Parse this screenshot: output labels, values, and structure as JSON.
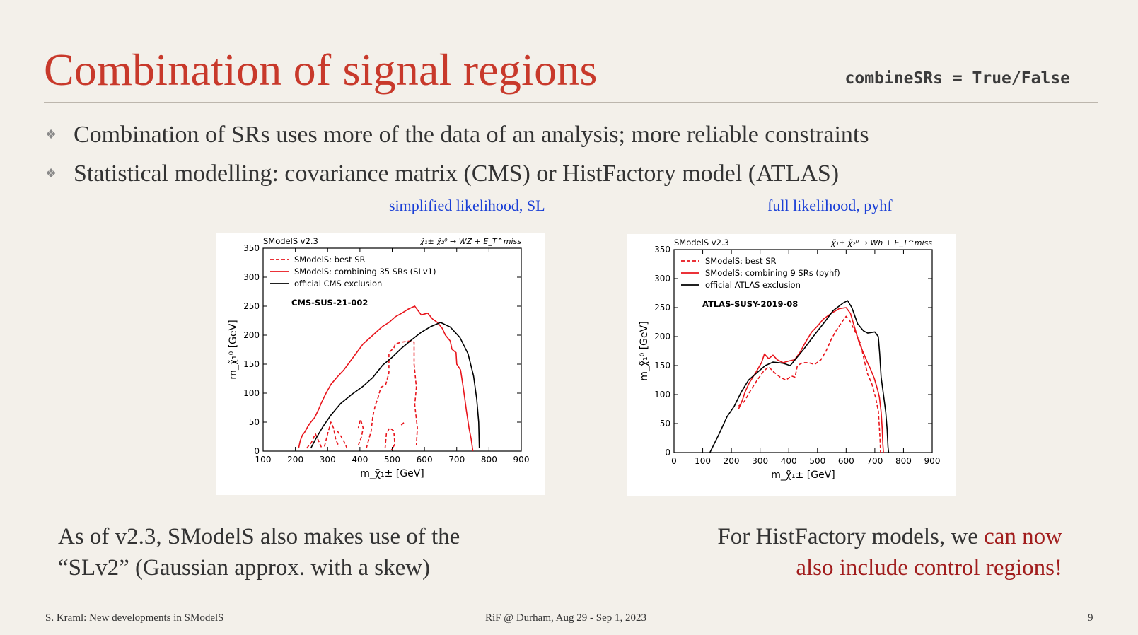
{
  "slide": {
    "title": "Combination of signal regions",
    "code_snippet": "combineSRs = True/False",
    "bullets": [
      "Combination of SRs uses more of the data of an analysis; more reliable constraints",
      "Statistical modelling: covariance matrix (CMS) or HistFactory model (ATLAS)"
    ],
    "bullet_icon": "diamond-bullet-icon",
    "left_label": "simplified likelihood, SL",
    "right_label": "full likelihood, pyhf",
    "caption_left_line1": "As of v2.3, SModelS also makes use of the",
    "caption_left_line2": "“SLv2” (Gaussian approx. with a skew)",
    "caption_right_normal": "For HistFactory models, we ",
    "caption_right_highlight1": "can now",
    "caption_right_highlight2": "also include control regions!",
    "footer_left": "S. Kraml: New developments in SModelS",
    "footer_center": "RiF @ Durham, Aug 29 - Sep 1, 2023",
    "page_number": "9",
    "colors": {
      "title": "#c8392b",
      "blue_label": "#1a3fd6",
      "highlight": "#a11d1d",
      "curve_red": "#e8141b",
      "curve_black": "#000000"
    }
  },
  "chart_data": [
    {
      "type": "line",
      "version_label": "SModelS v2.3",
      "process_label": "χ̃₁± χ̃₂⁰ → WZ + E_T^miss",
      "analysis_label": "CMS-SUS-21-002",
      "xlabel": "m_χ̃₁± [GeV]",
      "ylabel": "m_χ̃₁⁰ [GeV]",
      "xlim": [
        100,
        900
      ],
      "ylim": [
        0,
        350
      ],
      "xticks": [
        "100",
        "200",
        "300",
        "400",
        "500",
        "600",
        "700",
        "800",
        "900"
      ],
      "yticks": [
        "0",
        "50",
        "100",
        "150",
        "200",
        "250",
        "300",
        "350"
      ],
      "legend": "top-left",
      "series": [
        {
          "name": "SModelS: best SR",
          "style": "dashed",
          "color": "#e8141b",
          "segments": [
            [
              [
                235,
                5
              ],
              [
                250,
                15
              ],
              [
                262,
                30
              ],
              [
                270,
                20
              ],
              [
                282,
                5
              ]
            ],
            [
              [
                290,
                8
              ],
              [
                300,
                30
              ],
              [
                310,
                50
              ],
              [
                318,
                40
              ],
              [
                325,
                20
              ],
              [
                335,
                8
              ]
            ],
            [
              [
                330,
                35
              ],
              [
                342,
                25
              ],
              [
                352,
                15
              ],
              [
                360,
                5
              ]
            ],
            [
              [
                395,
                10
              ],
              [
                405,
                25
              ],
              [
                410,
                40
              ],
              [
                402,
                55
              ],
              [
                395,
                40
              ]
            ],
            [
              [
                420,
                5
              ],
              [
                435,
                35
              ],
              [
                440,
                60
              ],
              [
                448,
                80
              ],
              [
                455,
                90
              ],
              [
                465,
                110
              ],
              [
                480,
                115
              ],
              [
                490,
                135
              ],
              [
                490,
                170
              ],
              [
                505,
                178
              ],
              [
                510,
                185
              ],
              [
                530,
                188
              ],
              [
                555,
                190
              ],
              [
                568,
                188
              ],
              [
                568,
                150
              ],
              [
                575,
                110
              ],
              [
                570,
                80
              ],
              [
                578,
                40
              ],
              [
                575,
                10
              ]
            ],
            [
              [
                478,
                5
              ],
              [
                482,
                30
              ],
              [
                492,
                40
              ],
              [
                505,
                35
              ],
              [
                508,
                12
              ],
              [
                498,
                2
              ]
            ],
            [
              [
                528,
                45
              ],
              [
                538,
                50
              ]
            ]
          ]
        },
        {
          "name": "SModelS: combining 35 SRs (SLv1)",
          "style": "solid",
          "color": "#e8141b",
          "segments": [
            [
              [
                210,
                5
              ],
              [
                215,
                18
              ],
              [
                222,
                28
              ],
              [
                228,
                32
              ],
              [
                238,
                42
              ],
              [
                245,
                48
              ],
              [
                260,
                58
              ],
              [
                272,
                72
              ],
              [
                282,
                85
              ],
              [
                295,
                100
              ],
              [
                310,
                115
              ],
              [
                330,
                128
              ],
              [
                350,
                140
              ],
              [
                370,
                155
              ],
              [
                390,
                170
              ],
              [
                410,
                185
              ],
              [
                430,
                195
              ],
              [
                450,
                205
              ],
              [
                470,
                215
              ],
              [
                490,
                222
              ],
              [
                510,
                232
              ],
              [
                530,
                238
              ],
              [
                550,
                245
              ],
              [
                570,
                250
              ],
              [
                590,
                235
              ],
              [
                610,
                238
              ],
              [
                625,
                228
              ],
              [
                640,
                222
              ],
              [
                655,
                212
              ],
              [
                665,
                200
              ],
              [
                680,
                190
              ],
              [
                685,
                176
              ],
              [
                698,
                170
              ],
              [
                700,
                150
              ],
              [
                712,
                140
              ],
              [
                720,
                110
              ],
              [
                725,
                90
              ],
              [
                730,
                70
              ],
              [
                738,
                40
              ],
              [
                745,
                20
              ],
              [
                750,
                0
              ]
            ]
          ]
        },
        {
          "name": "official CMS exclusion",
          "style": "solid",
          "color": "#000000",
          "segments": [
            [
              [
                248,
                5
              ],
              [
                262,
                20
              ],
              [
                285,
                42
              ],
              [
                310,
                62
              ],
              [
                340,
                82
              ],
              [
                375,
                98
              ],
              [
                410,
                112
              ],
              [
                440,
                127
              ],
              [
                470,
                148
              ],
              [
                500,
                162
              ],
              [
                530,
                178
              ],
              [
                560,
                192
              ],
              [
                590,
                205
              ],
              [
                620,
                215
              ],
              [
                650,
                222
              ],
              [
                680,
                214
              ],
              [
                710,
                196
              ],
              [
                735,
                168
              ],
              [
                752,
                130
              ],
              [
                762,
                90
              ],
              [
                768,
                50
              ],
              [
                770,
                5
              ]
            ]
          ]
        }
      ]
    },
    {
      "type": "line",
      "version_label": "SModelS v2.3",
      "process_label": "χ̃₁± χ̃₂⁰ → Wh + E_T^miss",
      "analysis_label": "ATLAS-SUSY-2019-08",
      "xlabel": "m_χ̃₁± [GeV]",
      "ylabel": "m_χ̃₁⁰ [GeV]",
      "xlim": [
        0,
        900
      ],
      "ylim": [
        0,
        350
      ],
      "xticks": [
        "0",
        "100",
        "200",
        "300",
        "400",
        "500",
        "600",
        "700",
        "800",
        "900"
      ],
      "yticks": [
        "0",
        "50",
        "100",
        "150",
        "200",
        "250",
        "300",
        "350"
      ],
      "legend": "top-left",
      "series": [
        {
          "name": "SModelS: best SR",
          "style": "dashed",
          "color": "#e8141b",
          "segments": [
            [
              [
                225,
                80
              ],
              [
                245,
                88
              ],
              [
                268,
                108
              ],
              [
                290,
                125
              ],
              [
                312,
                140
              ],
              [
                330,
                148
              ],
              [
                345,
                140
              ],
              [
                370,
                130
              ],
              [
                390,
                125
              ],
              [
                410,
                132
              ],
              [
                422,
                130
              ],
              [
                430,
                150
              ],
              [
                448,
                155
              ],
              [
                470,
                155
              ],
              [
                490,
                152
              ],
              [
                512,
                160
              ],
              [
                530,
                175
              ],
              [
                548,
                195
              ],
              [
                565,
                210
              ],
              [
                585,
                225
              ],
              [
                600,
                235
              ],
              [
                612,
                228
              ],
              [
                630,
                210
              ],
              [
                650,
                188
              ],
              [
                665,
                155
              ],
              [
                675,
                135
              ],
              [
                690,
                118
              ],
              [
                702,
                96
              ],
              [
                712,
                72
              ],
              [
                715,
                50
              ],
              [
                718,
                25
              ],
              [
                720,
                0
              ]
            ]
          ]
        },
        {
          "name": "SModelS: combining 9 SRs (pyhf)",
          "style": "solid",
          "color": "#e8141b",
          "segments": [
            [
              [
                225,
                75
              ],
              [
                238,
                90
              ],
              [
                248,
                105
              ],
              [
                262,
                120
              ],
              [
                285,
                138
              ],
              [
                305,
                155
              ],
              [
                315,
                170
              ],
              [
                330,
                162
              ],
              [
                345,
                168
              ],
              [
                360,
                160
              ],
              [
                380,
                155
              ],
              [
                402,
                158
              ],
              [
                420,
                160
              ],
              [
                438,
                172
              ],
              [
                458,
                190
              ],
              [
                480,
                208
              ],
              [
                500,
                218
              ],
              [
                520,
                230
              ],
              [
                548,
                240
              ],
              [
                575,
                248
              ],
              [
                600,
                250
              ],
              [
                615,
                240
              ],
              [
                630,
                215
              ],
              [
                645,
                190
              ],
              [
                660,
                172
              ],
              [
                672,
                158
              ],
              [
                684,
                145
              ],
              [
                698,
                128
              ],
              [
                710,
                108
              ],
              [
                716,
                95
              ],
              [
                722,
                70
              ],
              [
                726,
                40
              ],
              [
                728,
                15
              ],
              [
                730,
                0
              ]
            ]
          ]
        },
        {
          "name": "official ATLAS exclusion",
          "style": "solid",
          "color": "#000000",
          "segments": [
            [
              [
                125,
                0
              ],
              [
                155,
                30
              ],
              [
                185,
                62
              ],
              [
                210,
                80
              ],
              [
                235,
                105
              ],
              [
                260,
                125
              ],
              [
                290,
                138
              ],
              [
                318,
                150
              ],
              [
                345,
                156
              ],
              [
                380,
                154
              ],
              [
                405,
                150
              ],
              [
                425,
                162
              ],
              [
                455,
                180
              ],
              [
                485,
                200
              ],
              [
                520,
                222
              ],
              [
                555,
                245
              ],
              [
                590,
                258
              ],
              [
                605,
                262
              ],
              [
                620,
                250
              ],
              [
                640,
                222
              ],
              [
                660,
                210
              ],
              [
                675,
                206
              ],
              [
                700,
                208
              ],
              [
                712,
                200
              ],
              [
                717,
                170
              ],
              [
                722,
                130
              ],
              [
                730,
                100
              ],
              [
                738,
                70
              ],
              [
                743,
                40
              ],
              [
                746,
                10
              ],
              [
                748,
                0
              ]
            ]
          ]
        }
      ]
    }
  ]
}
